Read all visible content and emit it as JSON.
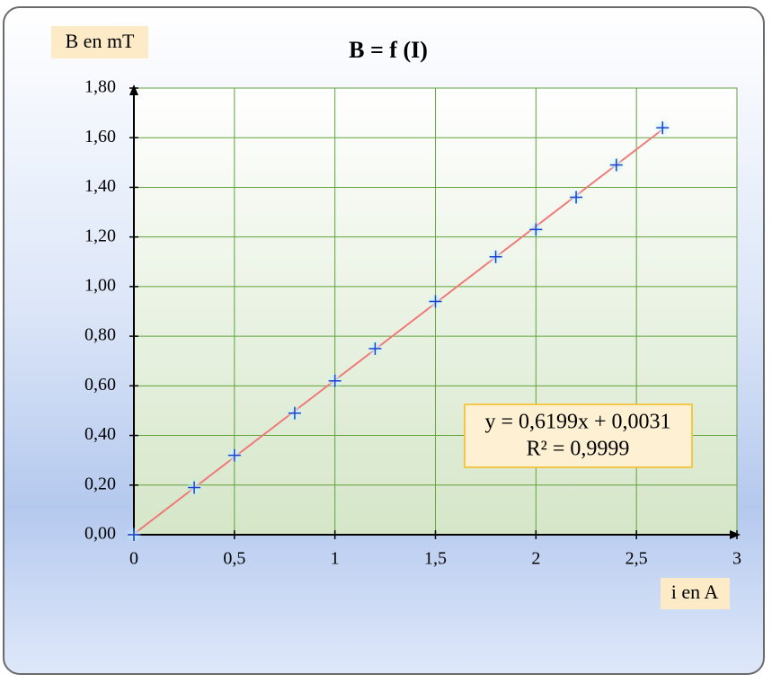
{
  "chart_data": {
    "type": "scatter",
    "title": "B = f (I)",
    "x_label": "i en A",
    "y_label": "B en mT",
    "x": [
      0,
      0.3,
      0.5,
      0.8,
      1.0,
      1.2,
      1.5,
      1.8,
      2.0,
      2.2,
      2.4,
      2.63
    ],
    "values": [
      0,
      0.19,
      0.32,
      0.49,
      0.62,
      0.75,
      0.94,
      1.12,
      1.23,
      1.36,
      1.49,
      1.64
    ],
    "color": "#1f3fd0",
    "trendline": {
      "equation": "y = 0,6199x + 0,0031",
      "r2": "R² = 0,9999",
      "slope": 0.6199,
      "intercept": 0.0031,
      "color": "#f07a7a"
    },
    "grid": true,
    "grid_color": "#5fa33a",
    "xlim": [
      0,
      3
    ],
    "xticks": [
      0,
      {
        "value": 0.5,
        "label": "0,5"
      },
      1,
      {
        "value": 1.5,
        "label": "1,5"
      },
      2,
      {
        "value": 2.5,
        "label": "2,5"
      },
      3
    ],
    "ylim": [
      0,
      1.8
    ],
    "yticks": [
      {
        "value": 0,
        "label": "0,00"
      },
      {
        "value": 0.2,
        "label": "0,20"
      },
      {
        "value": 0.4,
        "label": "0,40"
      },
      {
        "value": 0.6,
        "label": "0,60"
      },
      {
        "value": 0.8,
        "label": "0,80"
      },
      {
        "value": 1.0,
        "label": "1,00"
      },
      {
        "value": 1.2,
        "label": "1,20"
      },
      {
        "value": 1.4,
        "label": "1,40"
      },
      {
        "value": 1.6,
        "label": "1,60"
      },
      {
        "value": 1.8,
        "label": "1,80"
      }
    ]
  }
}
